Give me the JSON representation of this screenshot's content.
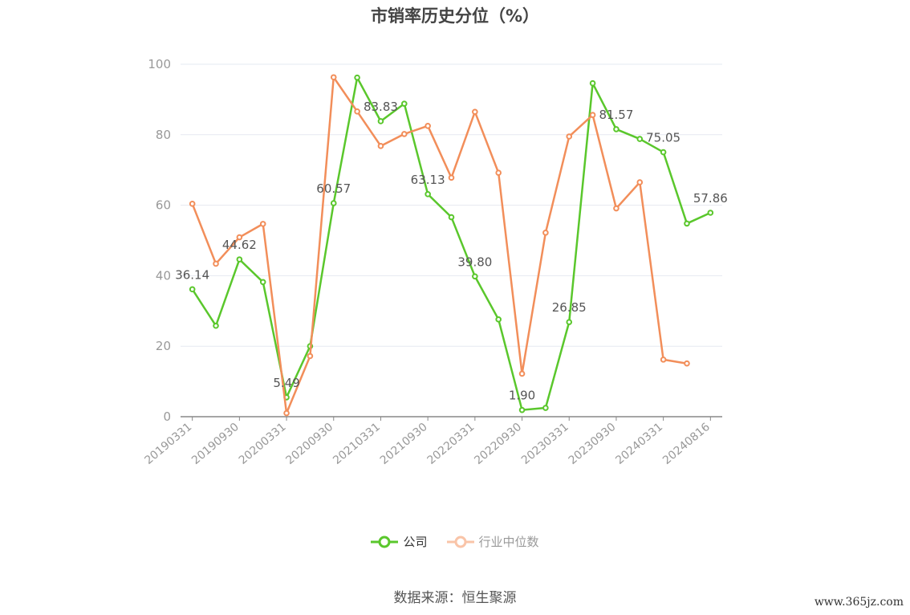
{
  "chart_data": {
    "type": "line",
    "title": "市销率历史分位（%）",
    "xlabel": "",
    "ylabel": "",
    "ylim": [
      0,
      100
    ],
    "yticks": [
      0,
      20,
      40,
      60,
      80,
      100
    ],
    "x": [
      "20190331",
      "20190630",
      "20190930",
      "20191231",
      "20200331",
      "20200630",
      "20200930",
      "20201231",
      "20210331",
      "20210630",
      "20210930",
      "20211231",
      "20220331",
      "20220630",
      "20220930",
      "20221231",
      "20230331",
      "20230630",
      "20230930",
      "20231231",
      "20240331",
      "20240630",
      "20240816"
    ],
    "xtick_labels": [
      "20190331",
      "20190930",
      "20200331",
      "20200930",
      "20210331",
      "20210930",
      "20220331",
      "20220930",
      "20230331",
      "20230930",
      "20240331",
      "20240816"
    ],
    "grid": true,
    "legend_position": "bottom",
    "series": [
      {
        "name": "公司",
        "color": "#5ac72c",
        "values": [
          36.14,
          25.8,
          44.62,
          38.2,
          5.49,
          20.0,
          60.57,
          96.2,
          83.83,
          88.8,
          63.13,
          56.6,
          39.8,
          27.6,
          1.9,
          2.5,
          26.85,
          94.6,
          81.57,
          78.8,
          75.05,
          54.8,
          57.86
        ],
        "labeled_points": {
          "0": "36.14",
          "2": "44.62",
          "4": "5.49",
          "6": "60.57",
          "8": "83.83",
          "10": "63.13",
          "12": "39.80",
          "14": "1.90",
          "16": "26.85",
          "18": "81.57",
          "20": "75.05",
          "22": "57.86"
        }
      },
      {
        "name": "行业中位数",
        "color": "#f28e5a",
        "values": [
          60.4,
          43.4,
          50.9,
          54.7,
          1.0,
          17.2,
          96.3,
          86.6,
          76.8,
          80.2,
          82.5,
          67.8,
          86.5,
          69.2,
          12.2,
          52.2,
          79.5,
          85.6,
          59.1,
          66.5,
          16.2,
          15.1,
          null
        ]
      }
    ]
  },
  "source": "数据来源：恒生聚源",
  "watermark": "www.365jz.com"
}
